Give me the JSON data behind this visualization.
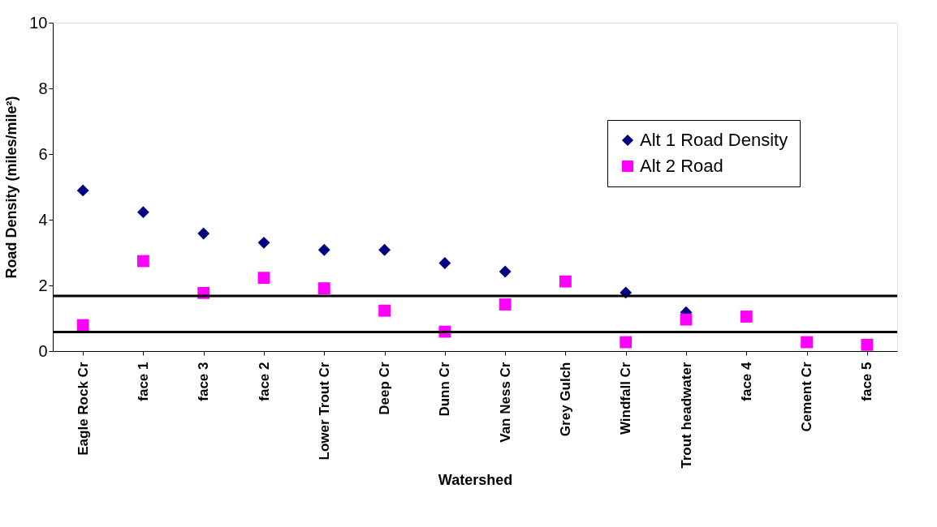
{
  "chart_data": {
    "type": "scatter",
    "xlabel": "Watershed",
    "ylabel": "Road Density (miles/mile²)",
    "categories": [
      "Eagle Rock Cr",
      "face 1",
      "face 3",
      "face 2",
      "Lower Trout Cr",
      "Deep Cr",
      "Dunn Cr",
      "Van Ness Cr",
      "Grey Gulch",
      "Windfall Cr",
      "Trout headwater",
      "face 4",
      "Cement Cr",
      "face 5"
    ],
    "series": [
      {
        "name": "Alt 1 Road Density",
        "color": "#000080",
        "marker": "diamond",
        "values": [
          4.89,
          4.23,
          3.58,
          3.3,
          3.08,
          3.08,
          2.68,
          2.42,
          null,
          1.78,
          1.18,
          null,
          null,
          null
        ]
      },
      {
        "name": "Alt 2 Road",
        "color": "#ff00ff",
        "marker": "square",
        "values": [
          0.79,
          2.74,
          1.77,
          2.23,
          1.91,
          1.23,
          0.59,
          1.42,
          2.12,
          0.27,
          0.96,
          1.05,
          0.27,
          0.19
        ]
      }
    ],
    "ylim": [
      0,
      10
    ],
    "yticks": [
      0,
      2,
      4,
      6,
      8,
      10
    ],
    "grid": false,
    "legend": "top right",
    "ref_lines": [
      {
        "axis": "y",
        "value": 1.68,
        "color": "#000000"
      },
      {
        "axis": "y",
        "value": 0.58,
        "color": "#000000"
      }
    ]
  }
}
